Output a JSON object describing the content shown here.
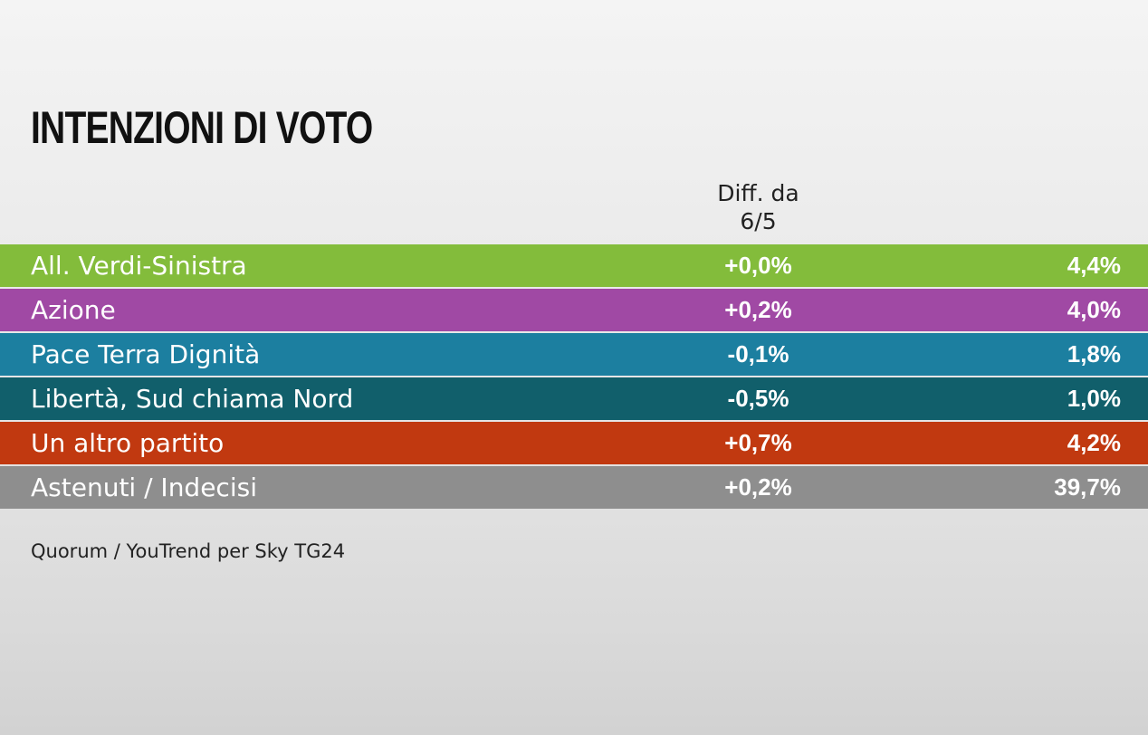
{
  "title": "INTENZIONI DI VOTO",
  "diff_header_line1": "Diff. da",
  "diff_header_line2": "6/5",
  "source": "Quorum / YouTrend per Sky TG24",
  "chart_data": {
    "type": "table",
    "title": "INTENZIONI DI VOTO",
    "columns": [
      "",
      "Diff. da 6/5",
      ""
    ],
    "rows": [
      {
        "name": "All. Verdi-Sinistra",
        "diff": "+0,0%",
        "value": "4,4%",
        "color": "#83bc3b"
      },
      {
        "name": "Azione",
        "diff": "+0,2%",
        "value": "4,0%",
        "color": "#a049a4"
      },
      {
        "name": "Pace Terra Dignità",
        "diff": "-0,1%",
        "value": "1,8%",
        "color": "#1c7fa0"
      },
      {
        "name": "Libertà, Sud chiama Nord",
        "diff": "-0,5%",
        "value": "1,0%",
        "color": "#115f6b"
      },
      {
        "name": "Un altro partito",
        "diff": "+0,7%",
        "value": "4,2%",
        "color": "#c13910"
      },
      {
        "name": "Astenuti / Indecisi",
        "diff": "+0,2%",
        "value": "39,7%",
        "color": "#8e8e8e"
      }
    ]
  }
}
